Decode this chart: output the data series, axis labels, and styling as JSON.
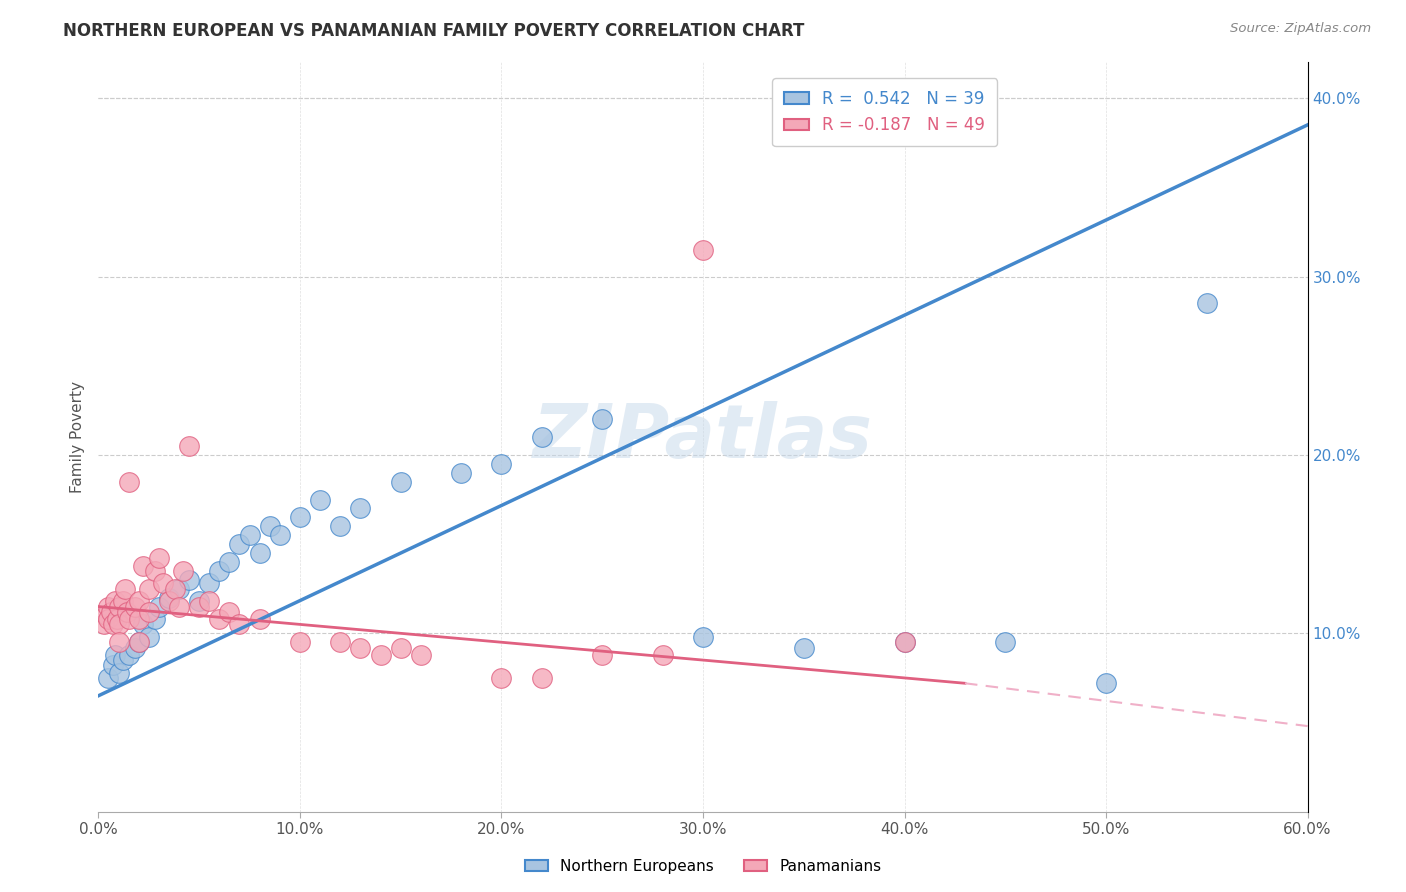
{
  "title": "NORTHERN EUROPEAN VS PANAMANIAN FAMILY POVERTY CORRELATION CHART",
  "source": "Source: ZipAtlas.com",
  "xlabel": "",
  "ylabel": "Family Poverty",
  "xlim": [
    0.0,
    0.6
  ],
  "ylim": [
    0.0,
    0.42
  ],
  "x_ticks": [
    0.0,
    0.1,
    0.2,
    0.3,
    0.4,
    0.5,
    0.6
  ],
  "y_ticks": [
    0.0,
    0.1,
    0.2,
    0.3,
    0.4
  ],
  "blue_R": 0.542,
  "blue_N": 39,
  "pink_R": -0.187,
  "pink_N": 49,
  "blue_color": "#a8c4e0",
  "pink_color": "#f4a8b8",
  "blue_line_color": "#4488cc",
  "pink_line_color": "#e06080",
  "pink_dash_color": "#f0b0c8",
  "watermark": "ZIPatlas",
  "blue_line": [
    0.0,
    0.065,
    0.6,
    0.385
  ],
  "pink_line_solid": [
    0.0,
    0.115,
    0.43,
    0.072
  ],
  "pink_line_dash": [
    0.43,
    0.072,
    0.6,
    0.048
  ],
  "blue_points": [
    [
      0.005,
      0.075
    ],
    [
      0.007,
      0.082
    ],
    [
      0.008,
      0.088
    ],
    [
      0.01,
      0.078
    ],
    [
      0.012,
      0.085
    ],
    [
      0.015,
      0.088
    ],
    [
      0.018,
      0.092
    ],
    [
      0.02,
      0.095
    ],
    [
      0.022,
      0.105
    ],
    [
      0.025,
      0.098
    ],
    [
      0.028,
      0.108
    ],
    [
      0.03,
      0.115
    ],
    [
      0.035,
      0.12
    ],
    [
      0.04,
      0.125
    ],
    [
      0.045,
      0.13
    ],
    [
      0.05,
      0.118
    ],
    [
      0.055,
      0.128
    ],
    [
      0.06,
      0.135
    ],
    [
      0.065,
      0.14
    ],
    [
      0.07,
      0.15
    ],
    [
      0.075,
      0.155
    ],
    [
      0.08,
      0.145
    ],
    [
      0.085,
      0.16
    ],
    [
      0.09,
      0.155
    ],
    [
      0.1,
      0.165
    ],
    [
      0.11,
      0.175
    ],
    [
      0.12,
      0.16
    ],
    [
      0.13,
      0.17
    ],
    [
      0.15,
      0.185
    ],
    [
      0.18,
      0.19
    ],
    [
      0.2,
      0.195
    ],
    [
      0.22,
      0.21
    ],
    [
      0.25,
      0.22
    ],
    [
      0.3,
      0.098
    ],
    [
      0.35,
      0.092
    ],
    [
      0.4,
      0.095
    ],
    [
      0.45,
      0.095
    ],
    [
      0.5,
      0.072
    ],
    [
      0.55,
      0.285
    ]
  ],
  "pink_points": [
    [
      0.003,
      0.105
    ],
    [
      0.004,
      0.11
    ],
    [
      0.005,
      0.115
    ],
    [
      0.005,
      0.108
    ],
    [
      0.006,
      0.112
    ],
    [
      0.007,
      0.105
    ],
    [
      0.008,
      0.118
    ],
    [
      0.009,
      0.108
    ],
    [
      0.01,
      0.115
    ],
    [
      0.01,
      0.105
    ],
    [
      0.01,
      0.095
    ],
    [
      0.012,
      0.118
    ],
    [
      0.013,
      0.125
    ],
    [
      0.014,
      0.112
    ],
    [
      0.015,
      0.108
    ],
    [
      0.015,
      0.185
    ],
    [
      0.018,
      0.115
    ],
    [
      0.02,
      0.108
    ],
    [
      0.02,
      0.118
    ],
    [
      0.02,
      0.095
    ],
    [
      0.022,
      0.138
    ],
    [
      0.025,
      0.125
    ],
    [
      0.025,
      0.112
    ],
    [
      0.028,
      0.135
    ],
    [
      0.03,
      0.142
    ],
    [
      0.032,
      0.128
    ],
    [
      0.035,
      0.118
    ],
    [
      0.038,
      0.125
    ],
    [
      0.04,
      0.115
    ],
    [
      0.042,
      0.135
    ],
    [
      0.045,
      0.205
    ],
    [
      0.05,
      0.115
    ],
    [
      0.055,
      0.118
    ],
    [
      0.06,
      0.108
    ],
    [
      0.065,
      0.112
    ],
    [
      0.07,
      0.105
    ],
    [
      0.08,
      0.108
    ],
    [
      0.1,
      0.095
    ],
    [
      0.12,
      0.095
    ],
    [
      0.13,
      0.092
    ],
    [
      0.14,
      0.088
    ],
    [
      0.15,
      0.092
    ],
    [
      0.16,
      0.088
    ],
    [
      0.2,
      0.075
    ],
    [
      0.22,
      0.075
    ],
    [
      0.25,
      0.088
    ],
    [
      0.28,
      0.088
    ],
    [
      0.3,
      0.315
    ],
    [
      0.4,
      0.095
    ]
  ]
}
